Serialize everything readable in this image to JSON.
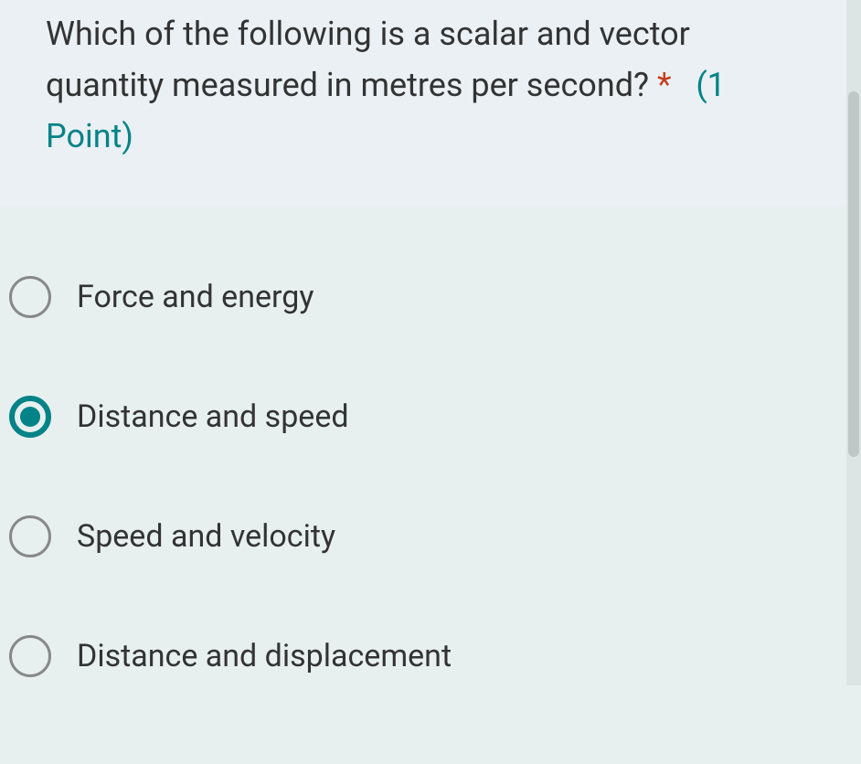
{
  "question": {
    "text": "Which of the following is a scalar and vector quantity measured in metres per second?",
    "required_mark": "*",
    "point_value": "(1 Point)"
  },
  "options": [
    {
      "label": "Force and energy",
      "selected": false
    },
    {
      "label": "Distance and speed",
      "selected": true
    },
    {
      "label": "Speed and velocity",
      "selected": false
    },
    {
      "label": "Distance and displacement",
      "selected": false
    }
  ],
  "colors": {
    "header_bg": "#eaf0f4",
    "body_bg": "#e8efef",
    "text": "#333333",
    "required": "#c43e1c",
    "accent": "#038387",
    "radio_border": "#888888"
  }
}
